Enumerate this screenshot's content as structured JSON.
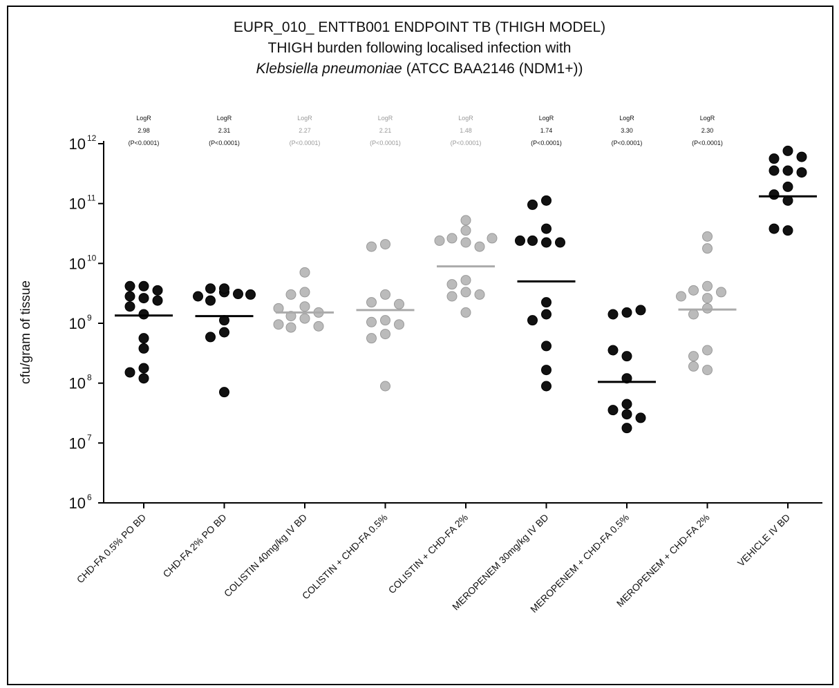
{
  "title": {
    "line1": "EUPR_010_ ENTTB001 ENDPOINT TB (THIGH MODEL)",
    "line2": "THIGH burden following localised infection with",
    "line3_italic": "Klebsiella pneumoniae",
    "line3_rest": " (ATCC BAA2146 (NDM1+))"
  },
  "chart_data": {
    "type": "scatter",
    "ylabel": "cfu/gram of tissue",
    "yscale": "log",
    "ylim": [
      6,
      12
    ],
    "y_ticks": [
      {
        "base": "10",
        "exp": "6",
        "value": 6
      },
      {
        "base": "10",
        "exp": "7",
        "value": 7
      },
      {
        "base": "10",
        "exp": "8",
        "value": 8
      },
      {
        "base": "10",
        "exp": "9",
        "value": 9
      },
      {
        "base": "10",
        "exp": "10",
        "value": 10
      },
      {
        "base": "10",
        "exp": "11",
        "value": 11
      },
      {
        "base": "10",
        "exp": "12",
        "value": 12
      }
    ],
    "categories": [
      "CHD-FA 0.5% PO BD",
      "CHD-FA 2% PO BD",
      "COLISTIN 40mg/kg IV BD",
      "COLISTIN + CHD-FA 0.5%",
      "COLISTIN + CHD-FA 2%",
      "MEROPENEM 30mg/kg IV BD",
      "MEROPENEM + CHD-FA 0.5%",
      "MEROPENEM + CHD-FA 2%",
      "VEHICLE IV BD"
    ],
    "series": [
      {
        "color": "#111111",
        "mean_log": 9.13,
        "log_values": [
          9.62,
          9.62,
          9.42,
          9.45,
          9.38,
          9.55,
          9.15,
          9.28,
          8.75,
          8.58,
          8.25,
          8.08,
          8.18
        ]
      },
      {
        "color": "#111111",
        "mean_log": 9.12,
        "log_values": [
          9.52,
          9.58,
          9.49,
          9.45,
          9.38,
          9.48,
          9.58,
          9.05,
          8.85,
          8.77,
          7.85
        ]
      },
      {
        "color": "#bbbbbb",
        "mean_log": 9.18,
        "log_values": [
          9.85,
          9.52,
          9.48,
          9.28,
          9.12,
          9.18,
          9.25,
          9.08,
          8.93,
          8.95,
          8.98
        ]
      },
      {
        "color": "#bbbbbb",
        "mean_log": 9.22,
        "log_values": [
          10.32,
          10.28,
          9.48,
          9.35,
          9.32,
          9.05,
          9.02,
          8.82,
          8.75,
          8.98,
          7.95
        ]
      },
      {
        "color": "#bbbbbb",
        "mean_log": 9.95,
        "log_values": [
          10.72,
          10.55,
          10.42,
          10.35,
          10.28,
          10.38,
          10.42,
          9.72,
          9.65,
          9.52,
          9.45,
          9.48,
          9.18
        ]
      },
      {
        "color": "#111111",
        "mean_log": 9.7,
        "log_values": [
          11.05,
          10.98,
          10.58,
          10.35,
          10.38,
          10.35,
          10.38,
          9.35,
          9.15,
          9.05,
          8.62,
          8.22,
          7.95
        ]
      },
      {
        "color": "#111111",
        "mean_log": 8.02,
        "log_values": [
          9.18,
          9.15,
          9.22,
          8.45,
          8.55,
          8.08,
          7.65,
          7.55,
          7.48,
          7.42,
          7.25
        ]
      },
      {
        "color": "#bbbbbb",
        "mean_log": 9.23,
        "log_values": [
          10.45,
          10.25,
          9.62,
          9.55,
          9.52,
          9.42,
          9.45,
          9.25,
          9.15,
          8.55,
          8.45,
          8.22,
          8.28
        ]
      },
      {
        "color": "#111111",
        "mean_log": 11.12,
        "log_values": [
          11.88,
          11.75,
          11.78,
          11.55,
          11.55,
          11.52,
          11.28,
          11.05,
          11.15,
          10.55,
          10.58
        ]
      }
    ],
    "annotations": [
      {
        "line1": "LogR",
        "line2": "2.98",
        "line3": "(P<0.0001)",
        "color": "#111111"
      },
      {
        "line1": "LogR",
        "line2": "2.31",
        "line3": "(P<0.0001)",
        "color": "#111111"
      },
      {
        "line1": "LogR",
        "line2": "2.27",
        "line3": "(P<0.0001)",
        "color": "#999999"
      },
      {
        "line1": "LogR",
        "line2": "2.21",
        "line3": "(P<0.0001)",
        "color": "#999999"
      },
      {
        "line1": "LogR",
        "line2": "1.48",
        "line3": "(P<0.0001)",
        "color": "#999999"
      },
      {
        "line1": "LogR",
        "line2": "1.74",
        "line3": "(P<0.0001)",
        "color": "#111111"
      },
      {
        "line1": "LogR",
        "line2": "3.30",
        "line3": "(P<0.0001)",
        "color": "#111111"
      },
      {
        "line1": "LogR",
        "line2": "2.30",
        "line3": "(P<0.0001)",
        "color": "#111111"
      }
    ]
  }
}
